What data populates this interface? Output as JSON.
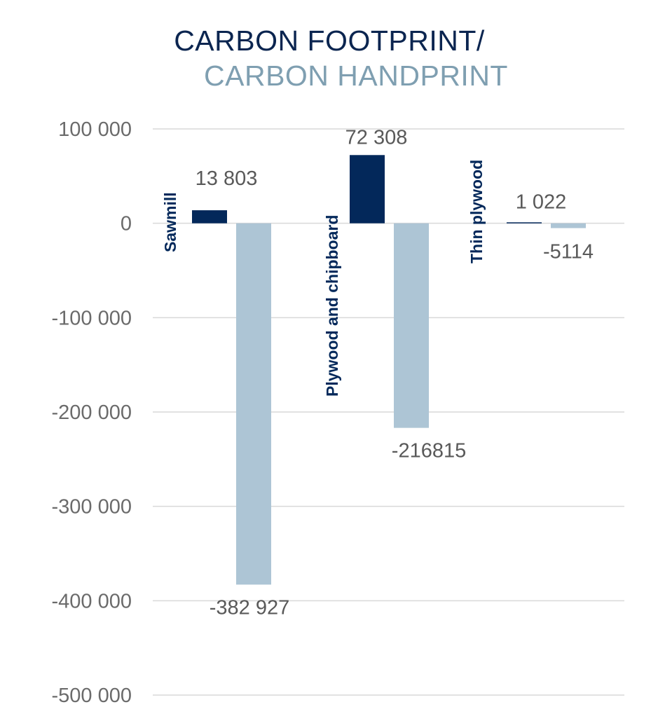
{
  "title": {
    "line1": "CARBON FOOTPRINT",
    "slash": "/",
    "line2": "CARBON HANDPRINT"
  },
  "colors": {
    "footprint": "#03285a",
    "handprint": "#adc5d5",
    "title_dark": "#0b2550",
    "title_light": "#7f9fb1",
    "category_label": "#03285a"
  },
  "chart_data": {
    "type": "bar",
    "categories": [
      "Sawmill",
      "Plywood and chipboard",
      "Thin plywood"
    ],
    "series": [
      {
        "key": "footprint",
        "values": [
          13803,
          72308,
          1022
        ]
      },
      {
        "key": "handprint",
        "values": [
          -382927,
          -216815,
          -5114
        ]
      }
    ],
    "data_labels": {
      "footprint": [
        "13 803",
        "72 308",
        "1 022"
      ],
      "handprint": [
        "-382 927",
        "-216815",
        "-5114"
      ]
    },
    "ylim": [
      -500000,
      100000
    ],
    "yticks": [
      100000,
      0,
      -100000,
      -200000,
      -300000,
      -400000,
      -500000
    ],
    "ytick_labels": [
      "100 000",
      "0",
      "-100 000",
      "-200 000",
      "-300 000",
      "-400 000",
      "-500 000"
    ],
    "grid": true,
    "legend": "none"
  }
}
